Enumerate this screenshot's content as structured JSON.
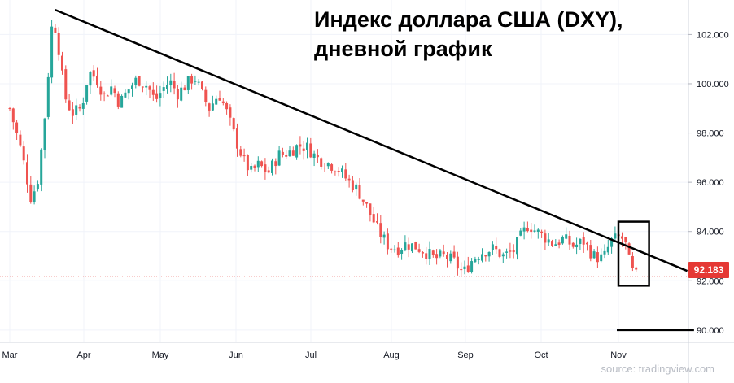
{
  "title_line1": "Индекс доллара США (DXY),",
  "title_line2": "дневной график",
  "source": "source: tradingview.com",
  "colors": {
    "up": "#26a69a",
    "down": "#ef5350",
    "current_price": "#e53935",
    "trendline": "#000000"
  },
  "chart_data": {
    "type": "candlestick",
    "title": "Индекс доллара США (DXY), дневной график",
    "x_labels": [
      "Mar",
      "Apr",
      "May",
      "Jun",
      "Jul",
      "Aug",
      "Sep",
      "Oct",
      "Nov"
    ],
    "y_ticks": [
      "90.000",
      "92.000",
      "94.000",
      "96.000",
      "98.000",
      "100.000",
      "102.000"
    ],
    "ylim": [
      89.5,
      103.4
    ],
    "current_price": "92.183",
    "grid": true,
    "trendline": {
      "start": {
        "date": "Mar 20",
        "value": 103.0
      },
      "end": {
        "date": "Nov 28",
        "value": 92.4
      }
    },
    "horizontal_level": {
      "value": 90.0,
      "from": "Nov 1",
      "to": "Nov 30"
    },
    "highlight_box": {
      "from": "Nov 1",
      "to": "Nov 13",
      "low": 91.8,
      "high": 94.4
    },
    "close_path": [
      [
        "Mar 1",
        99.0
      ],
      [
        "Mar 6",
        97.2
      ],
      [
        "Mar 10",
        95.3
      ],
      [
        "Mar 13",
        96.2
      ],
      [
        "Mar 16",
        99.0
      ],
      [
        "Mar 19",
        102.8
      ],
      [
        "Mar 21",
        101.8
      ],
      [
        "Mar 24",
        99.5
      ],
      [
        "Mar 27",
        98.8
      ],
      [
        "Mar 31",
        99.0
      ],
      [
        "Apr 3",
        100.5
      ],
      [
        "Apr 6",
        100.2
      ],
      [
        "Apr 9",
        99.5
      ],
      [
        "Apr 12",
        99.9
      ],
      [
        "Apr 15",
        99.2
      ],
      [
        "Apr 18",
        99.7
      ],
      [
        "Apr 22",
        100.2
      ],
      [
        "Apr 26",
        99.9
      ],
      [
        "Apr 29",
        99.3
      ],
      [
        "May 2",
        99.8
      ],
      [
        "May 5",
        100.1
      ],
      [
        "May 8",
        99.6
      ],
      [
        "May 12",
        100.0
      ],
      [
        "May 15",
        100.3
      ],
      [
        "May 18",
        99.6
      ],
      [
        "May 21",
        99.0
      ],
      [
        "May 25",
        99.6
      ],
      [
        "May 28",
        98.9
      ],
      [
        "Jun 1",
        97.7
      ],
      [
        "Jun 4",
        96.9
      ],
      [
        "Jun 7",
        96.4
      ],
      [
        "Jun 10",
        96.7
      ],
      [
        "Jun 14",
        96.4
      ],
      [
        "Jun 18",
        97.1
      ],
      [
        "Jun 22",
        97.2
      ],
      [
        "Jun 26",
        97.5
      ],
      [
        "Jun 30",
        97.4
      ],
      [
        "Jul 3",
        97.0
      ],
      [
        "Jul 7",
        96.8
      ],
      [
        "Jul 11",
        96.6
      ],
      [
        "Jul 15",
        96.1
      ],
      [
        "Jul 19",
        95.7
      ],
      [
        "Jul 23",
        94.9
      ],
      [
        "Jul 27",
        94.0
      ],
      [
        "Jul 31",
        93.4
      ],
      [
        "Aug 4",
        93.3
      ],
      [
        "Aug 7",
        93.5
      ],
      [
        "Aug 11",
        93.4
      ],
      [
        "Aug 15",
        93.2
      ],
      [
        "Aug 19",
        92.9
      ],
      [
        "Aug 23",
        93.0
      ],
      [
        "Aug 27",
        92.8
      ],
      [
        "Aug 31",
        92.3
      ],
      [
        "Sep 4",
        92.9
      ],
      [
        "Sep 8",
        93.2
      ],
      [
        "Sep 12",
        93.3
      ],
      [
        "Sep 16",
        93.0
      ],
      [
        "Sep 20",
        93.2
      ],
      [
        "Sep 23",
        93.8
      ],
      [
        "Sep 26",
        94.3
      ],
      [
        "Sep 29",
        94.0
      ],
      [
        "Oct 2",
        93.8
      ],
      [
        "Oct 6",
        93.5
      ],
      [
        "Oct 10",
        93.7
      ],
      [
        "Oct 14",
        93.4
      ],
      [
        "Oct 18",
        93.6
      ],
      [
        "Oct 22",
        93.0
      ],
      [
        "Oct 26",
        92.9
      ],
      [
        "Oct 29",
        93.6
      ],
      [
        "Nov 2",
        93.8
      ],
      [
        "Nov 4",
        93.4
      ],
      [
        "Nov 6",
        92.4
      ],
      [
        "Nov 9",
        92.1
      ]
    ]
  }
}
